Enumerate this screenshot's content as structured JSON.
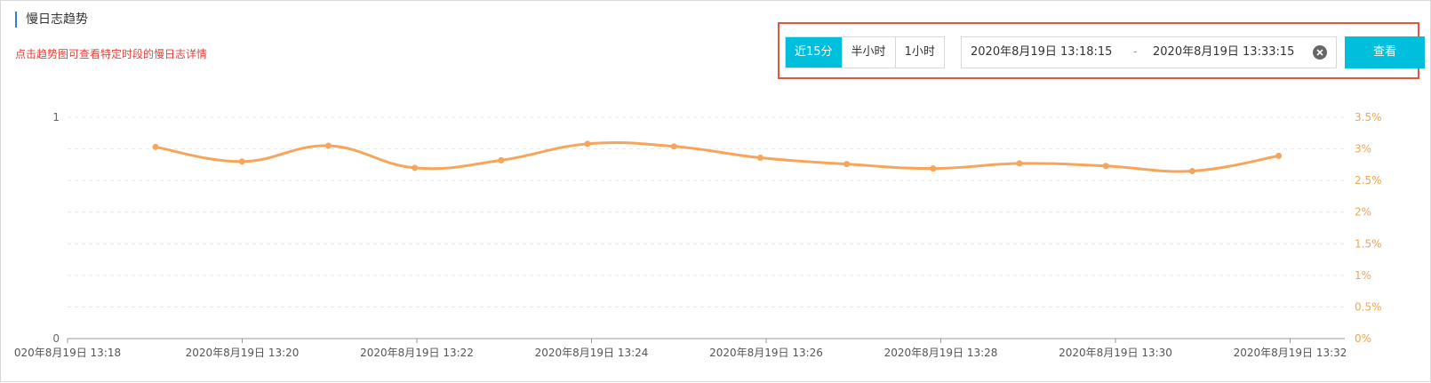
{
  "panel": {
    "title": "慢日志趋势",
    "hint": "点击趋势图可查看特定时段的慢日志详情"
  },
  "filters": {
    "quick_ranges": [
      {
        "label": "近15分",
        "active": true
      },
      {
        "label": "半小时",
        "active": false
      },
      {
        "label": "1小时",
        "active": false
      }
    ],
    "range_start": "2020年8月19日 13:18:15",
    "range_separator": "-",
    "range_end": "2020年8月19日 13:33:15",
    "query_label": "查看"
  },
  "colors": {
    "accent": "#00bfdc",
    "line": "#f7a55a",
    "right_axis": "#f5a34f",
    "highlight_border": "#e2573c",
    "hint": "#e5403a"
  },
  "icons": {
    "clear": "close-circle-icon"
  },
  "chart_data": {
    "type": "line",
    "x_tick_labels": [
      "020年8月19日 13:18",
      "2020年8月19日 13:20",
      "2020年8月19日 13:22",
      "2020年8月19日 13:24",
      "2020年8月19日 13:26",
      "2020年8月19日 13:28",
      "2020年8月19日 13:30",
      "2020年8月19日 13:32"
    ],
    "x": [
      "13:19",
      "13:20",
      "13:21",
      "13:22",
      "13:23",
      "13:24",
      "13:25",
      "13:26",
      "13:27",
      "13:28",
      "13:29",
      "13:30",
      "13:31",
      "13:32"
    ],
    "series": [
      {
        "axis": "right",
        "values": [
          3.03,
          2.8,
          3.05,
          2.7,
          2.82,
          3.08,
          3.04,
          2.86,
          2.76,
          2.69,
          2.77,
          2.73,
          2.65,
          2.89
        ]
      }
    ],
    "left_axis": {
      "ticks": [
        "1",
        "0"
      ],
      "ylim": [
        0,
        1
      ]
    },
    "right_axis": {
      "ticks": [
        "3.5%",
        "3%",
        "2.5%",
        "2%",
        "1.5%",
        "1%",
        "0.5%",
        "0%"
      ],
      "ylim": [
        0,
        3.5
      ]
    },
    "grid": true,
    "smooth": true
  }
}
